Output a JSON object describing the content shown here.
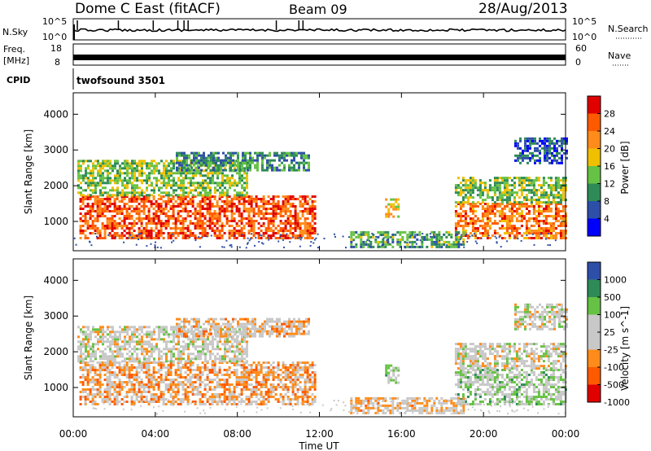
{
  "header": {
    "station": "Dome C East (fitACF)",
    "beam": "Beam 09",
    "date": "28/Aug/2013"
  },
  "nsky_panel": {
    "left_label": "N.Sky",
    "left_ticks": [
      "10^5",
      "10^0"
    ],
    "right_label": "N.Search",
    "right_ticks": [
      "10^5",
      "10^0"
    ]
  },
  "freq_panel": {
    "left_label_line1": "Freq.",
    "left_label_line2": "[MHz]",
    "left_ticks": [
      "18",
      "8"
    ],
    "right_label": "Nave",
    "right_ticks": [
      "60",
      "0"
    ]
  },
  "cpid": {
    "label": "CPID",
    "value": "twofsound 3501"
  },
  "x_axis": {
    "title": "Time UT",
    "ticks": [
      "00:00",
      "04:00",
      "08:00",
      "12:00",
      "16:00",
      "20:00",
      "00:00"
    ]
  },
  "chart_data": [
    {
      "type": "heatmap",
      "title": "",
      "xlabel": "Time UT",
      "ylabel": "Slant Range [km]",
      "xlim": [
        0,
        24
      ],
      "ylim": [
        180,
        4600
      ],
      "y_ticks": [
        "1000",
        "2000",
        "3000",
        "4000"
      ],
      "colorbar": {
        "label": "Power [dB]",
        "ticks": [
          "28",
          "24",
          "20",
          "16",
          "12",
          "8",
          "4"
        ],
        "range": [
          0,
          32
        ],
        "colors": [
          "#0000ff",
          "#2d4fa8",
          "#2e8b57",
          "#66c244",
          "#f0c000",
          "#ff8c1a",
          "#ff5a00",
          "#e00000"
        ]
      },
      "echo_regions": [
        {
          "t0": 0.3,
          "t1": 11.8,
          "r0": 500,
          "r1": 1700,
          "level": 26
        },
        {
          "t0": 0.2,
          "t1": 8.5,
          "r0": 1700,
          "r1": 2700,
          "level": 14
        },
        {
          "t0": 5.0,
          "t1": 11.5,
          "r0": 2400,
          "r1": 2900,
          "level": 10
        },
        {
          "t0": 15.2,
          "t1": 15.8,
          "r0": 1100,
          "r1": 1600,
          "level": 18
        },
        {
          "t0": 18.6,
          "t1": 24.0,
          "r0": 500,
          "r1": 1500,
          "level": 24
        },
        {
          "t0": 18.6,
          "t1": 24.0,
          "r0": 1500,
          "r1": 2200,
          "level": 14
        },
        {
          "t0": 21.5,
          "t1": 24.0,
          "r0": 2600,
          "r1": 3300,
          "level": 6
        },
        {
          "t0": 13.5,
          "t1": 19.0,
          "r0": 250,
          "r1": 700,
          "level": 12
        }
      ]
    },
    {
      "type": "heatmap",
      "title": "",
      "xlabel": "Time UT",
      "ylabel": "Slant Range [km]",
      "xlim": [
        0,
        24
      ],
      "ylim": [
        180,
        4600
      ],
      "y_ticks": [
        "1000",
        "2000",
        "3000",
        "4000"
      ],
      "colorbar": {
        "label": "Velocity [m s^-1]",
        "ticks": [
          "1000",
          "500",
          "100",
          "25",
          "-25",
          "-100",
          "-500",
          "-1000"
        ],
        "range": [
          -1000,
          1000
        ],
        "colors": [
          "#e00000",
          "#ff5a00",
          "#ff8c1a",
          "#c8c8c8",
          "#c8c8c8",
          "#66c244",
          "#2e8b57",
          "#2d4fa8"
        ]
      },
      "echo_regions": [
        {
          "t0": 0.3,
          "t1": 11.8,
          "r0": 500,
          "r1": 1700,
          "level": -300
        },
        {
          "t0": 0.2,
          "t1": 8.5,
          "r0": 1700,
          "r1": 2700,
          "level": 0
        },
        {
          "t0": 5.0,
          "t1": 11.5,
          "r0": 2400,
          "r1": 2900,
          "level": -200
        },
        {
          "t0": 15.2,
          "t1": 15.8,
          "r0": 1100,
          "r1": 1600,
          "level": 200
        },
        {
          "t0": 18.6,
          "t1": 24.0,
          "r0": 500,
          "r1": 1500,
          "level": 200
        },
        {
          "t0": 18.6,
          "t1": 24.0,
          "r0": 1500,
          "r1": 2200,
          "level": 0
        },
        {
          "t0": 21.5,
          "t1": 24.0,
          "r0": 2600,
          "r1": 3300,
          "level": 0
        },
        {
          "t0": 13.5,
          "t1": 19.0,
          "r0": 250,
          "r1": 700,
          "level": -150
        }
      ]
    }
  ]
}
